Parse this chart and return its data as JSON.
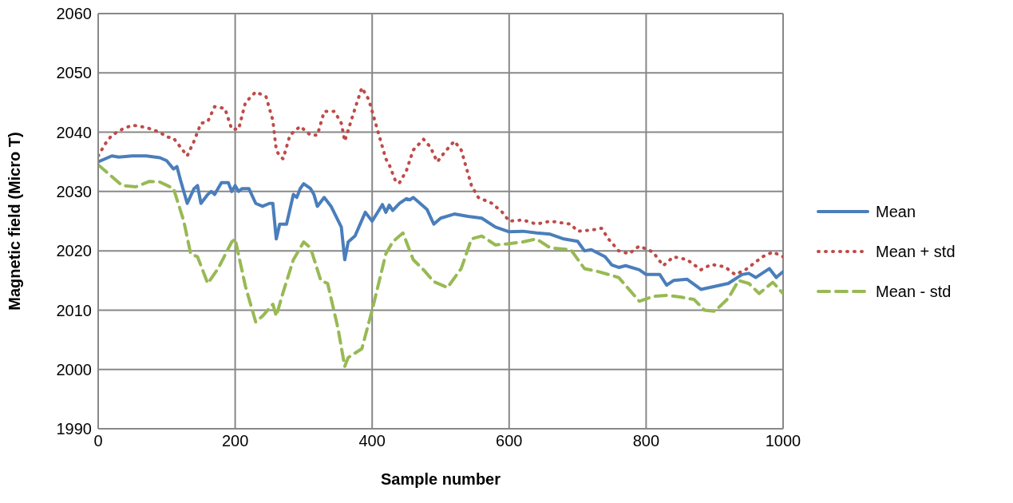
{
  "chart_data": {
    "type": "line",
    "xlabel": "Sample number",
    "ylabel": "Magnetic field (Micro T)",
    "xlim": [
      0,
      1000
    ],
    "xticks": [
      0,
      200,
      400,
      600,
      800,
      1000
    ],
    "ylim": [
      1990,
      2060
    ],
    "yticks": [
      1990,
      2000,
      2010,
      2020,
      2030,
      2040,
      2050,
      2060
    ],
    "grid": true,
    "legend": "right",
    "marker": "none",
    "series": [
      {
        "name": "Mean",
        "color": "#4a7ebb",
        "line_style": "solid",
        "x": [
          0,
          10,
          20,
          30,
          50,
          70,
          90,
          100,
          105,
          110,
          115,
          120,
          130,
          140,
          145,
          150,
          160,
          165,
          170,
          180,
          190,
          195,
          200,
          205,
          210,
          220,
          230,
          240,
          250,
          255,
          260,
          265,
          275,
          285,
          290,
          295,
          300,
          310,
          315,
          320,
          330,
          340,
          355,
          360,
          365,
          375,
          390,
          400,
          415,
          420,
          425,
          430,
          440,
          450,
          455,
          460,
          470,
          480,
          490,
          500,
          520,
          540,
          560,
          580,
          600,
          620,
          640,
          660,
          680,
          700,
          710,
          720,
          740,
          750,
          760,
          770,
          790,
          800,
          820,
          830,
          840,
          860,
          880,
          900,
          920,
          940,
          950,
          960,
          980,
          990,
          1000
        ],
        "values": [
          2035,
          2035.5,
          2036,
          2035.8,
          2036,
          2036,
          2035.7,
          2035.2,
          2034.5,
          2033.8,
          2034.2,
          2032,
          2028,
          2030.5,
          2031,
          2028,
          2029.5,
          2030,
          2029.5,
          2031.5,
          2031.5,
          2030,
          2031,
          2030,
          2030.5,
          2030.5,
          2028,
          2027.5,
          2028,
          2028,
          2022,
          2024.5,
          2024.5,
          2029.5,
          2029,
          2030.5,
          2031.3,
          2030.5,
          2029.5,
          2027.5,
          2029,
          2027.5,
          2024,
          2018.5,
          2021.5,
          2022.5,
          2026.5,
          2025,
          2027.8,
          2026.5,
          2027.7,
          2026.8,
          2028,
          2028.8,
          2028.6,
          2029,
          2028,
          2027,
          2024.5,
          2025.5,
          2026.2,
          2025.8,
          2025.5,
          2024,
          2023.2,
          2023.3,
          2023,
          2022.8,
          2022,
          2021.6,
          2020,
          2020.2,
          2019,
          2017.6,
          2017.2,
          2017.5,
          2016.8,
          2016,
          2016,
          2014.2,
          2015,
          2015.2,
          2013.5,
          2014,
          2014.5,
          2016,
          2016.2,
          2015.5,
          2017,
          2015.5,
          2016.5
        ]
      },
      {
        "name": "Mean + std",
        "color": "#be4b48",
        "line_style": "dotted",
        "x": [
          0,
          10,
          20,
          35,
          50,
          70,
          90,
          100,
          110,
          120,
          130,
          140,
          150,
          160,
          170,
          185,
          195,
          205,
          215,
          230,
          245,
          255,
          260,
          265,
          270,
          280,
          295,
          310,
          320,
          330,
          345,
          355,
          360,
          375,
          385,
          395,
          405,
          420,
          425,
          435,
          440,
          450,
          460,
          475,
          485,
          495,
          505,
          520,
          530,
          545,
          555,
          575,
          590,
          600,
          620,
          640,
          660,
          690,
          700,
          720,
          735,
          745,
          760,
          775,
          790,
          810,
          825,
          840,
          860,
          880,
          895,
          915,
          930,
          945,
          970,
          985,
          1000
        ],
        "values": [
          2036,
          2038,
          2039.5,
          2040.5,
          2041.2,
          2040.8,
          2040,
          2039.2,
          2039,
          2037.5,
          2036,
          2038.5,
          2041.5,
          2041.8,
          2044.3,
          2044,
          2040.5,
          2040.5,
          2045,
          2046.8,
          2046,
          2042,
          2037,
          2036,
          2035.5,
          2039.5,
          2041,
          2039.5,
          2039.5,
          2043.5,
          2043.5,
          2041.5,
          2038.5,
          2044,
          2047.5,
          2045.5,
          2041.5,
          2035.5,
          2034.5,
          2031.5,
          2031.5,
          2033.5,
          2037,
          2038.8,
          2037.5,
          2035,
          2036.5,
          2038.5,
          2037,
          2031,
          2029,
          2028,
          2026.5,
          2025,
          2025.2,
          2024.5,
          2025,
          2024.5,
          2023.3,
          2023.5,
          2023.8,
          2022,
          2020,
          2019.5,
          2020.8,
          2019.8,
          2017.5,
          2019,
          2018.5,
          2016.8,
          2017.7,
          2017.3,
          2016,
          2016.8,
          2019,
          2019.8,
          2019
        ]
      },
      {
        "name": "Mean - std",
        "color": "#98b954",
        "line_style": "dashed",
        "x": [
          0,
          20,
          35,
          55,
          75,
          90,
          110,
          125,
          135,
          145,
          160,
          175,
          195,
          200,
          215,
          230,
          240,
          255,
          260,
          270,
          285,
          300,
          310,
          325,
          335,
          350,
          360,
          365,
          385,
          400,
          420,
          430,
          445,
          460,
          475,
          490,
          510,
          530,
          545,
          560,
          580,
          600,
          620,
          640,
          660,
          690,
          710,
          730,
          760,
          775,
          790,
          810,
          830,
          850,
          870,
          885,
          900,
          920,
          935,
          950,
          965,
          985,
          1000
        ],
        "values": [
          2034.5,
          2032.5,
          2031,
          2030.8,
          2031.7,
          2031.6,
          2030.5,
          2025,
          2019.5,
          2019,
          2014.5,
          2017,
          2021.5,
          2022,
          2014,
          2008,
          2009,
          2011,
          2009,
          2013,
          2018.5,
          2021.5,
          2020.5,
          2015,
          2014.5,
          2007,
          2000.5,
          2002,
          2003.5,
          2010,
          2019.5,
          2021.5,
          2023,
          2018.5,
          2016.8,
          2014.8,
          2013.8,
          2017,
          2022,
          2022.5,
          2021,
          2021.2,
          2021.5,
          2022,
          2020.5,
          2020.2,
          2017,
          2016.5,
          2015.5,
          2013.5,
          2011.5,
          2012.3,
          2012.5,
          2012.2,
          2011.8,
          2010,
          2009.8,
          2012,
          2015,
          2014.5,
          2012.8,
          2014.7,
          2012.8
        ]
      }
    ]
  }
}
